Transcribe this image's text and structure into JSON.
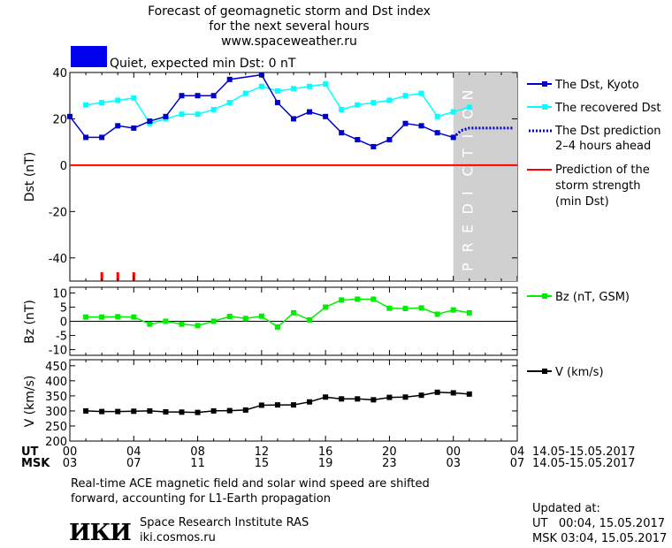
{
  "title_lines": [
    "Forecast of geomagnetic storm and Dst index",
    "for the next several hours",
    "www.spaceweather.ru"
  ],
  "status": {
    "text": "Quiet, expected min Dst: 0 nT",
    "color": "#0000ee"
  },
  "colors": {
    "dst": "#0000cc",
    "recovered": "#00ffff",
    "prediction": "#0000cc",
    "storm": "#ff0000",
    "bz": "#00ee00",
    "v": "#000000",
    "prediction_band": "#d0d0d0"
  },
  "chart_data": [
    {
      "type": "line",
      "ylabel": "Dst (nT)",
      "ylim": [
        -50,
        40
      ],
      "yticks": [
        40,
        20,
        0,
        -20,
        -40
      ],
      "xlim": [
        0,
        28
      ],
      "prediction_band": [
        24,
        28
      ],
      "prediction_label": "PREDICTION",
      "series": [
        {
          "name": "The Dst, Kyoto",
          "x": [
            0,
            1,
            2,
            3,
            4,
            5,
            6,
            7,
            8,
            9,
            10,
            12,
            13,
            14,
            15,
            16,
            17,
            18,
            19,
            20,
            21,
            22,
            23,
            24
          ],
          "y": [
            21,
            12,
            12,
            17,
            16,
            19,
            21,
            30,
            30,
            30,
            37,
            39,
            27,
            20,
            23,
            21,
            14,
            11,
            8,
            11,
            18,
            17,
            14,
            12
          ]
        },
        {
          "name": "The recovered Dst",
          "x": [
            1,
            2,
            3,
            4,
            5,
            6,
            7,
            8,
            9,
            10,
            11,
            12,
            13,
            14,
            15,
            16,
            17,
            18,
            19,
            20,
            21,
            22,
            23,
            24,
            25
          ],
          "y": [
            26,
            27,
            28,
            29,
            18,
            20,
            22,
            22,
            24,
            27,
            31,
            34,
            32,
            33,
            34,
            35,
            24,
            26,
            27,
            28,
            30,
            31,
            21,
            23,
            25
          ]
        },
        {
          "name": "The Dst prediction",
          "name_line2": "2–4 hours ahead",
          "x": [
            24,
            24.5,
            25,
            26,
            27,
            27.8
          ],
          "y": [
            12,
            15,
            16,
            16,
            16,
            16
          ]
        },
        {
          "name": "Prediction of the",
          "name_line2": "storm strength",
          "name_line3": "(min Dst)",
          "y": 0
        }
      ],
      "storm_marks_x": [
        2,
        3,
        4
      ]
    },
    {
      "type": "line",
      "ylabel": "Bz (nT)",
      "ylim": [
        -12,
        12
      ],
      "yticks": [
        10,
        5,
        0,
        -5,
        -10
      ],
      "series": [
        {
          "name": "Bz (nT, GSM)",
          "x": [
            1,
            2,
            3,
            4,
            5,
            6,
            7,
            8,
            9,
            10,
            11,
            12,
            13,
            14,
            15,
            16,
            17,
            18,
            19,
            20,
            21,
            22,
            23,
            24,
            25
          ],
          "y": [
            1.5,
            1.5,
            1.6,
            1.5,
            -1,
            0,
            -1,
            -1.5,
            0,
            1.7,
            1,
            1.8,
            -2,
            3,
            0.5,
            5,
            7.5,
            7.8,
            7.8,
            4.6,
            4.5,
            4.7,
            2.5,
            4,
            3
          ]
        }
      ]
    },
    {
      "type": "line",
      "ylabel": "V (km/s)",
      "ylim": [
        200,
        470
      ],
      "yticks": [
        450,
        400,
        350,
        300,
        250,
        200
      ],
      "series": [
        {
          "name": "V (km/s)",
          "x": [
            1,
            2,
            3,
            4,
            5,
            6,
            7,
            8,
            9,
            10,
            11,
            12,
            13,
            14,
            15,
            16,
            17,
            18,
            19,
            20,
            21,
            22,
            23,
            24,
            25
          ],
          "y": [
            300,
            298,
            298,
            299,
            300,
            297,
            296,
            295,
            300,
            301,
            303,
            319,
            320,
            320,
            330,
            346,
            340,
            340,
            337,
            345,
            346,
            352,
            362,
            360,
            356
          ]
        }
      ]
    }
  ],
  "time_axis": {
    "ut_label": "UT",
    "msk_label": "MSK",
    "ut_ticks": [
      "00",
      "04",
      "08",
      "12",
      "16",
      "20",
      "00",
      "04"
    ],
    "msk_ticks": [
      "03",
      "07",
      "11",
      "15",
      "19",
      "23",
      "03",
      "07"
    ],
    "date_range_ut": "14.05-15.05.2017",
    "date_range_msk": "14.05-15.05.2017"
  },
  "footer": {
    "note_line1": "Real-time ACE magnetic field and solar wind speed are shifted",
    "note_line2": "forward, accounting for L1-Earth propagation",
    "logo": "ИКИ",
    "institute": "Space Research Institute RAS",
    "site": "iki.cosmos.ru",
    "updated_label": "Updated at:",
    "updated_ut": "UT   00:04, 15.05.2017",
    "updated_msk": "MSK 03:04, 15.05.2017"
  }
}
